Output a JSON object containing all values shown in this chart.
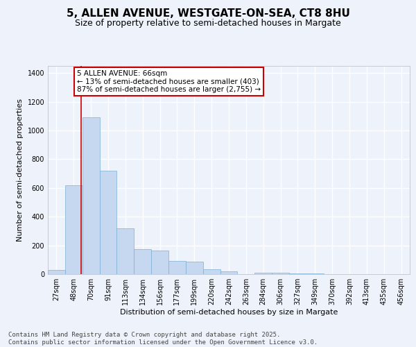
{
  "title_line1": "5, ALLEN AVENUE, WESTGATE-ON-SEA, CT8 8HU",
  "title_line2": "Size of property relative to semi-detached houses in Margate",
  "xlabel": "Distribution of semi-detached houses by size in Margate",
  "ylabel": "Number of semi-detached properties",
  "categories": [
    "27sqm",
    "48sqm",
    "70sqm",
    "91sqm",
    "113sqm",
    "134sqm",
    "156sqm",
    "177sqm",
    "199sqm",
    "220sqm",
    "242sqm",
    "263sqm",
    "284sqm",
    "306sqm",
    "327sqm",
    "349sqm",
    "370sqm",
    "392sqm",
    "413sqm",
    "435sqm",
    "456sqm"
  ],
  "values": [
    30,
    620,
    1090,
    720,
    320,
    175,
    165,
    90,
    85,
    35,
    20,
    0,
    10,
    10,
    5,
    5,
    0,
    0,
    0,
    0,
    0
  ],
  "bar_color": "#c5d8f0",
  "bar_edge_color": "#7bafd4",
  "background_color": "#edf2fb",
  "plot_bg_color": "#edf2fb",
  "grid_color": "#ffffff",
  "vline_x": 1.45,
  "vline_color": "#cc0000",
  "annotation_text": "5 ALLEN AVENUE: 66sqm\n← 13% of semi-detached houses are smaller (403)\n87% of semi-detached houses are larger (2,755) →",
  "annotation_box_color": "#cc0000",
  "ylim": [
    0,
    1450
  ],
  "yticks": [
    0,
    200,
    400,
    600,
    800,
    1000,
    1200,
    1400
  ],
  "footer_text": "Contains HM Land Registry data © Crown copyright and database right 2025.\nContains public sector information licensed under the Open Government Licence v3.0.",
  "title_fontsize": 11,
  "subtitle_fontsize": 9,
  "axis_label_fontsize": 8,
  "tick_fontsize": 7,
  "annotation_fontsize": 7.5,
  "footer_fontsize": 6.5
}
